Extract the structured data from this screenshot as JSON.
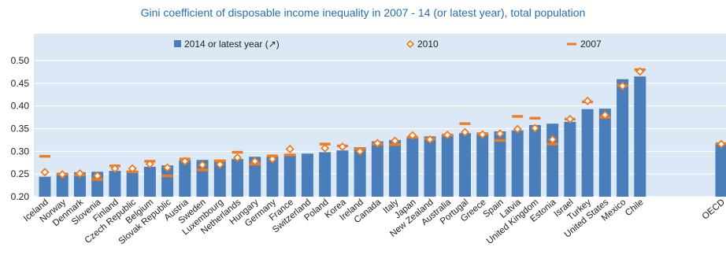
{
  "chart_data": {
    "type": "bar",
    "title": "Gini coefficient of disposable income inequality in 2007 - 14 (or latest year), total population",
    "xlabel": "",
    "ylabel": "",
    "ylim": [
      0.2,
      0.5
    ],
    "yticks": [
      "0.20",
      "0.25",
      "0.30",
      "0.35",
      "0.40",
      "0.45",
      "0.50"
    ],
    "grid": true,
    "legend_position": "top",
    "categories": [
      "Iceland",
      "Norway",
      "Denmark",
      "Slovenia",
      "Finland",
      "Czech Republic",
      "Belgium",
      "Slovak Republic",
      "Austria",
      "Sweden",
      "Luxembourg",
      "Netherlands",
      "Hungary",
      "Germany",
      "France",
      "Switzerland",
      "Poland",
      "Korea",
      "Ireland",
      "Canada",
      "Italy",
      "Japan",
      "New Zealand",
      "Australia",
      "Portugal",
      "Greece",
      "Spain",
      "Latvia",
      "United Kingdom",
      "Estonia",
      "Israel",
      "Turkey",
      "United States",
      "Mexico",
      "Chile",
      "OECD"
    ],
    "series": [
      {
        "name": "2014 or latest year (↗)",
        "kind": "bar",
        "color": "#4a7ebb",
        "values": [
          0.244,
          0.252,
          0.254,
          0.255,
          0.257,
          0.257,
          0.266,
          0.269,
          0.28,
          0.281,
          0.281,
          0.283,
          0.288,
          0.289,
          0.294,
          0.295,
          0.298,
          0.302,
          0.309,
          0.322,
          0.325,
          0.33,
          0.333,
          0.337,
          0.34,
          0.34,
          0.344,
          0.346,
          0.358,
          0.361,
          0.365,
          0.393,
          0.394,
          0.459,
          0.465,
          0.318
        ]
      },
      {
        "name": "2010",
        "kind": "diamond",
        "color": "#f07c22",
        "values": [
          0.254,
          0.249,
          0.251,
          0.246,
          0.262,
          0.262,
          0.272,
          0.264,
          0.278,
          0.27,
          0.271,
          0.286,
          0.278,
          0.283,
          0.305,
          null,
          0.307,
          0.31,
          0.3,
          0.318,
          0.323,
          0.335,
          0.326,
          0.336,
          0.342,
          0.337,
          0.339,
          0.349,
          0.351,
          0.326,
          0.371,
          0.411,
          0.38,
          0.444,
          0.476,
          0.316
        ]
      },
      {
        "name": "2007",
        "kind": "dash",
        "color": "#f07c22",
        "values": [
          0.289,
          0.25,
          0.248,
          0.238,
          0.268,
          0.255,
          0.278,
          0.246,
          0.283,
          0.259,
          0.279,
          0.298,
          0.272,
          0.29,
          0.292,
          null,
          0.316,
          0.312,
          0.306,
          0.316,
          0.315,
          0.331,
          0.328,
          0.336,
          0.361,
          0.339,
          0.324,
          0.377,
          0.373,
          0.316,
          0.371,
          0.409,
          0.375,
          0.445,
          0.48,
          0.317
        ]
      }
    ]
  }
}
